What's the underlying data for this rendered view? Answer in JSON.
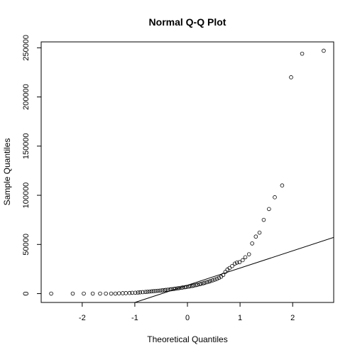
{
  "chart_data": {
    "type": "scatter",
    "title": "Normal Q-Q Plot",
    "xlabel": "Theoretical Quantiles",
    "ylabel": "Sample Quantiles",
    "xlim": [
      -2.78,
      2.78
    ],
    "ylim": [
      -9000,
      256000
    ],
    "grid": false,
    "x_ticks": [
      -2,
      -1,
      0,
      1,
      2
    ],
    "x_tick_labels": [
      "-2",
      "-1",
      "0",
      "1",
      "2"
    ],
    "y_ticks": [
      0,
      50000,
      100000,
      150000,
      200000,
      250000
    ],
    "y_tick_labels": [
      "0",
      "50000",
      "100000",
      "150000",
      "200000",
      "250000"
    ],
    "reference_line": {
      "intercept": 8500,
      "slope": 17500
    },
    "points": [
      [
        -2.59,
        0
      ],
      [
        -2.18,
        0
      ],
      [
        -1.97,
        0
      ],
      [
        -1.8,
        0
      ],
      [
        -1.66,
        0
      ],
      [
        -1.55,
        0
      ],
      [
        -1.45,
        0
      ],
      [
        -1.37,
        0
      ],
      [
        -1.3,
        300
      ],
      [
        -1.23,
        400
      ],
      [
        -1.17,
        500
      ],
      [
        -1.1,
        600
      ],
      [
        -1.05,
        800
      ],
      [
        -0.99,
        900
      ],
      [
        -0.94,
        1100
      ],
      [
        -0.9,
        1300
      ],
      [
        -0.85,
        1500
      ],
      [
        -0.8,
        1700
      ],
      [
        -0.76,
        1900
      ],
      [
        -0.72,
        2100
      ],
      [
        -0.68,
        2300
      ],
      [
        -0.64,
        2500
      ],
      [
        -0.6,
        2700
      ],
      [
        -0.56,
        2900
      ],
      [
        -0.52,
        3100
      ],
      [
        -0.48,
        3300
      ],
      [
        -0.44,
        3500
      ],
      [
        -0.41,
        3800
      ],
      [
        -0.37,
        4000
      ],
      [
        -0.33,
        4300
      ],
      [
        -0.3,
        4500
      ],
      [
        -0.26,
        4800
      ],
      [
        -0.23,
        5000
      ],
      [
        -0.19,
        5300
      ],
      [
        -0.16,
        5600
      ],
      [
        -0.12,
        5900
      ],
      [
        -0.09,
        6200
      ],
      [
        -0.05,
        6500
      ],
      [
        -0.02,
        6800
      ],
      [
        0.02,
        7100
      ],
      [
        0.05,
        7500
      ],
      [
        0.09,
        7800
      ],
      [
        0.12,
        8200
      ],
      [
        0.16,
        8600
      ],
      [
        0.19,
        9000
      ],
      [
        0.23,
        9500
      ],
      [
        0.26,
        10000
      ],
      [
        0.3,
        10500
      ],
      [
        0.33,
        11000
      ],
      [
        0.37,
        11600
      ],
      [
        0.41,
        12200
      ],
      [
        0.44,
        12800
      ],
      [
        0.48,
        13500
      ],
      [
        0.52,
        14200
      ],
      [
        0.56,
        15000
      ],
      [
        0.6,
        16000
      ],
      [
        0.64,
        17200
      ],
      [
        0.68,
        19000
      ],
      [
        0.72,
        22000
      ],
      [
        0.76,
        24500
      ],
      [
        0.8,
        26000
      ],
      [
        0.85,
        28000
      ],
      [
        0.9,
        30500
      ],
      [
        0.94,
        31500
      ],
      [
        0.99,
        32000
      ],
      [
        1.05,
        34000
      ],
      [
        1.1,
        37000
      ],
      [
        1.17,
        40000
      ],
      [
        1.23,
        51000
      ],
      [
        1.3,
        58000
      ],
      [
        1.37,
        62000
      ],
      [
        1.45,
        75000
      ],
      [
        1.55,
        86000
      ],
      [
        1.66,
        98000
      ],
      [
        1.8,
        110000
      ],
      [
        1.97,
        220000
      ],
      [
        2.18,
        244000
      ],
      [
        2.59,
        247000
      ]
    ]
  }
}
